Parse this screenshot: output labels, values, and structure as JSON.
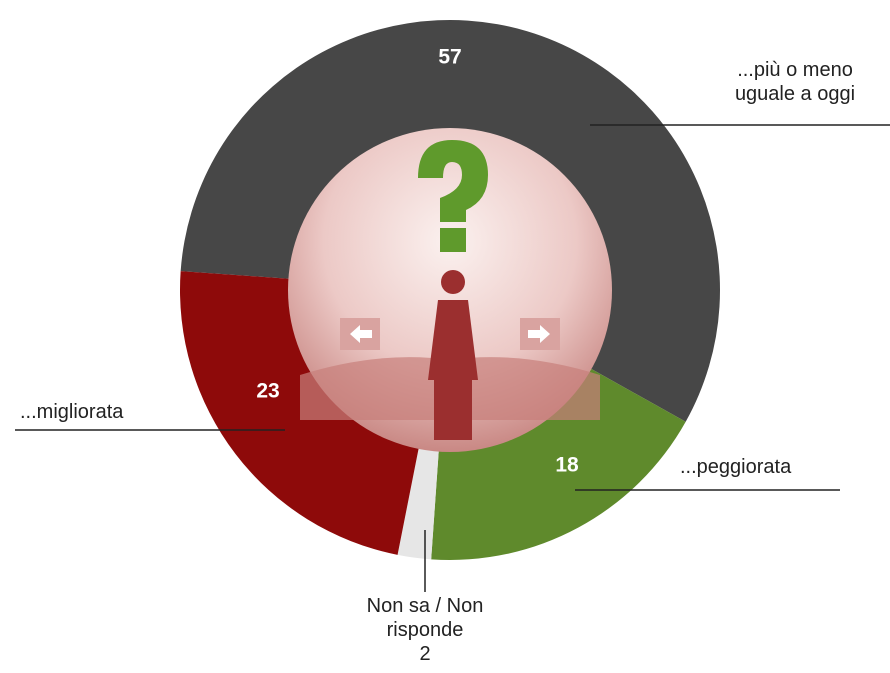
{
  "chart_data": {
    "type": "donut",
    "categories": [
      "...più o meno uguale a oggi",
      "...peggiorata",
      "Non sa / Non risponde",
      "...migliorata"
    ],
    "values": [
      57,
      18,
      2,
      23
    ],
    "colors": [
      "#474747",
      "#5f8a2c",
      "#e6e6e6",
      "#8e0a0a"
    ]
  }
}
